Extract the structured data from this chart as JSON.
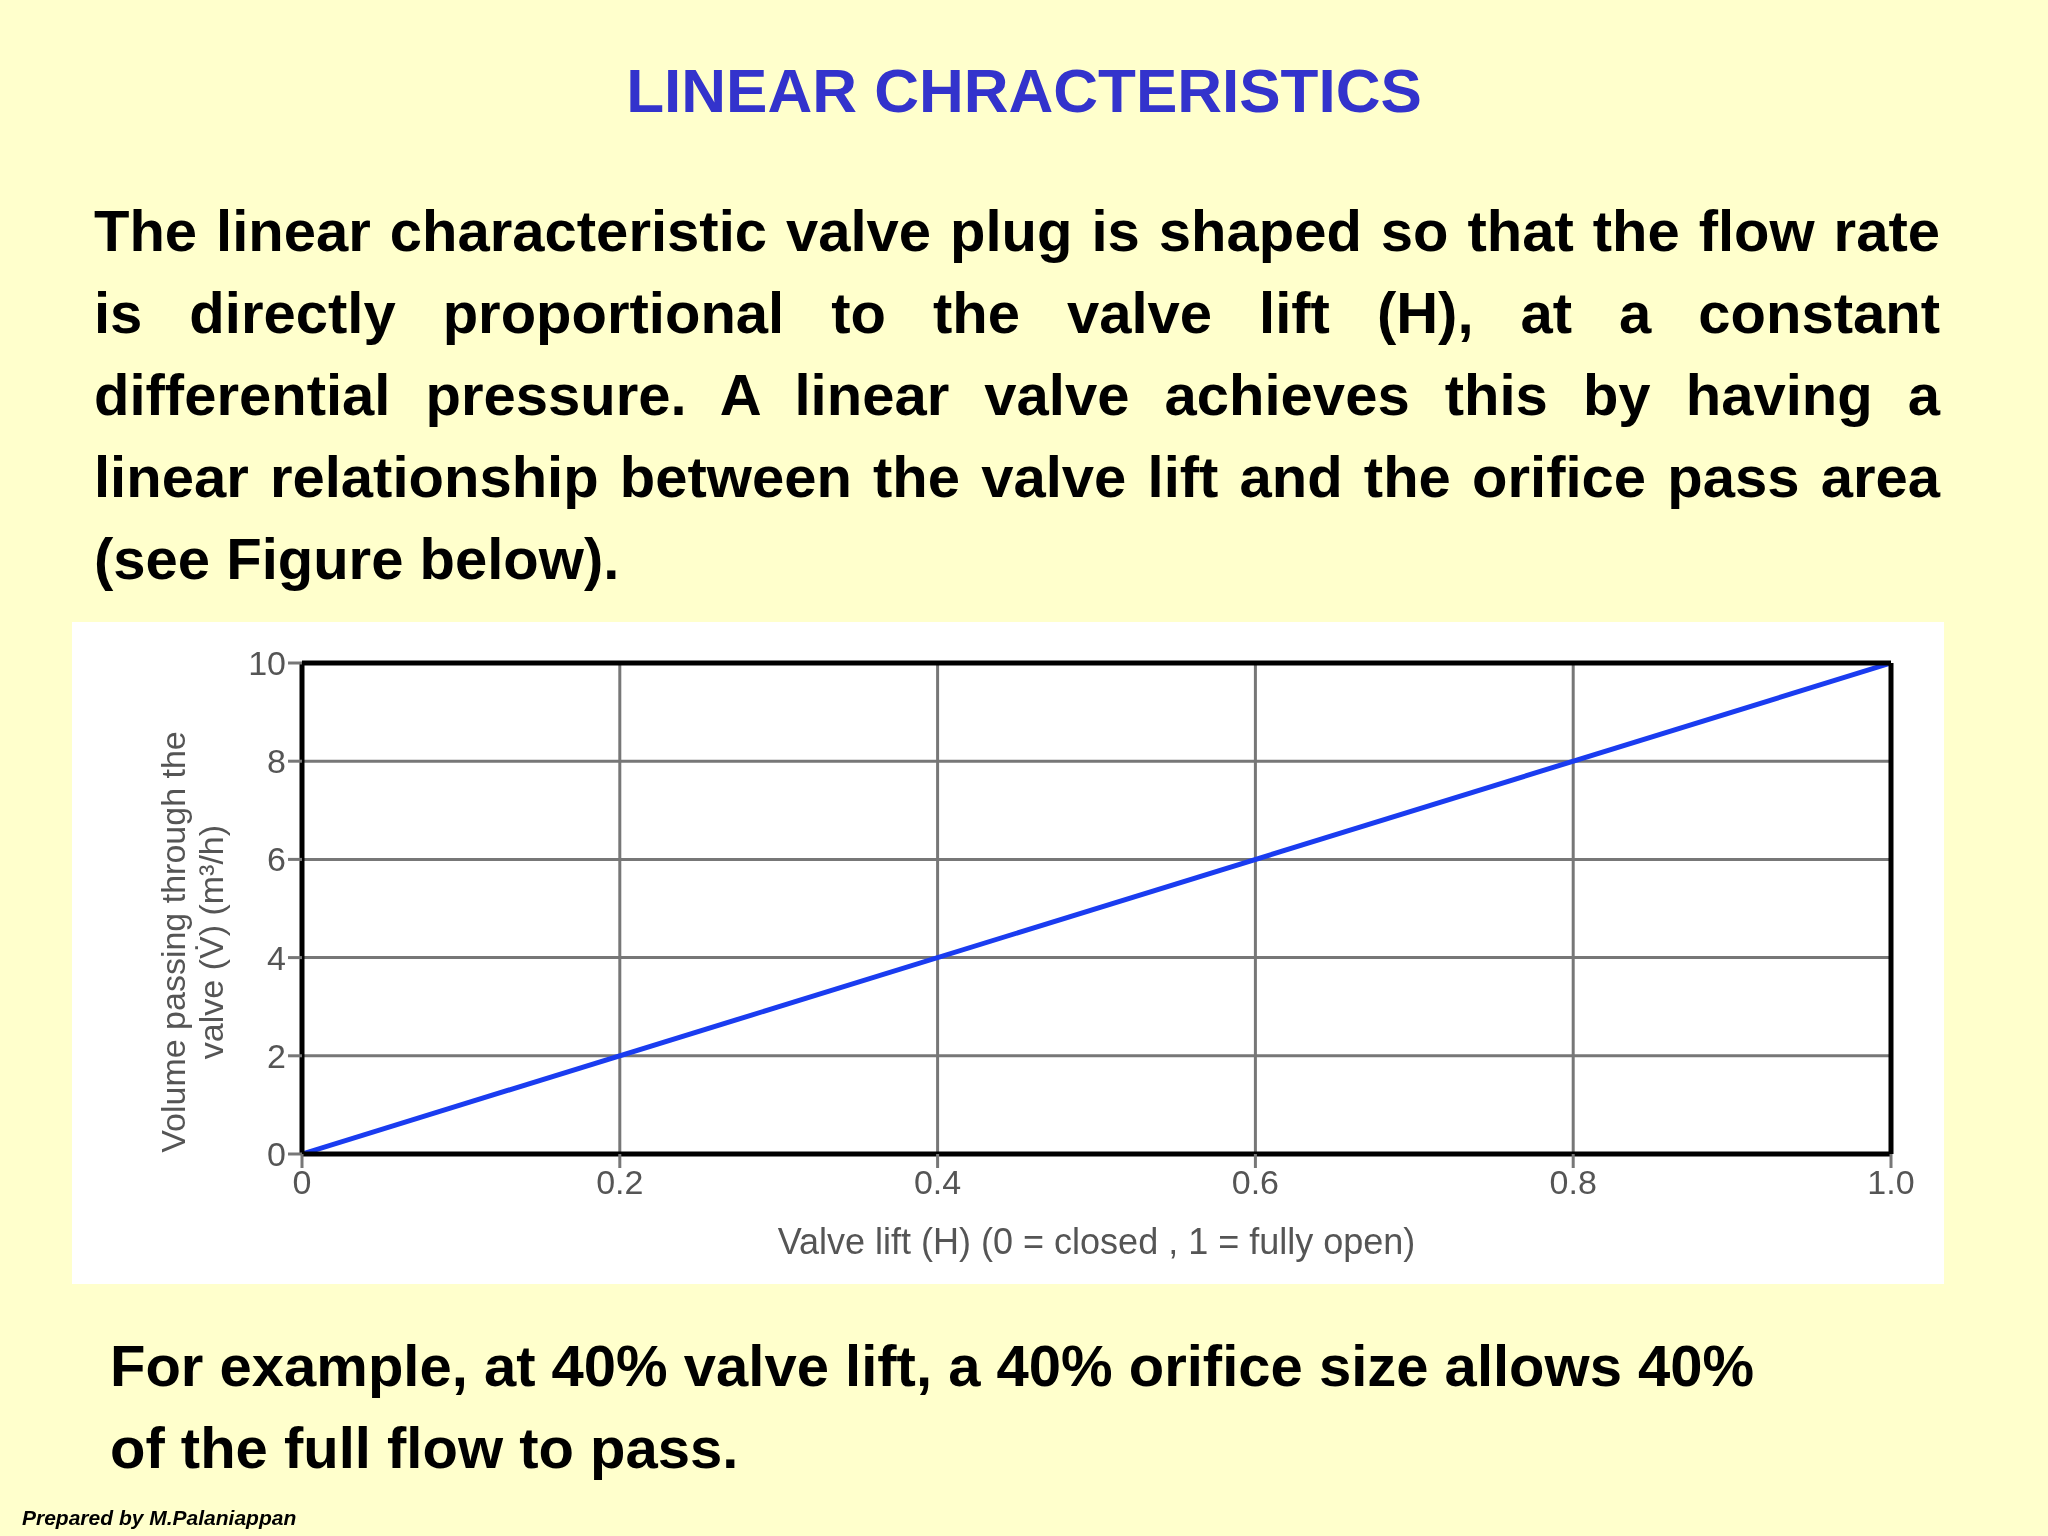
{
  "chart_data": {
    "type": "line",
    "title": "LINEAR CHRACTERISTICS",
    "subtitle": "The linear characteristic valve plug is shaped so that the flow rate is directly proportional to the valve lift (H), at a constant differential pressure. A linear valve achieves this by having a linear relationship between the valve lift and the orifice pass area (see Figure below).",
    "xlabel": "Valve lift (H) (0 = closed , 1 =  fully open)",
    "ylabel": "Volume passing through the valve (V̇) (m³/h)",
    "x": [
      0,
      1
    ],
    "series": [
      {
        "color": "#1a3cf0",
        "values": [
          0,
          10
        ]
      }
    ],
    "xlim": [
      0,
      1
    ],
    "xticks": [
      0,
      0.2,
      0.4,
      0.6,
      0.8,
      {
        "value": 1,
        "label": "1.0"
      }
    ],
    "ylim": [
      0,
      10
    ],
    "yticks": [
      0,
      2,
      4,
      6,
      8,
      10
    ],
    "grid": true,
    "legend": false,
    "marker": "none",
    "line_style": "solid",
    "annotations": [
      "For example, at 40% valve lift, a 40% orifice size allows 40% of the full flow to pass.",
      "Prepared by M.Palaniappan"
    ]
  }
}
